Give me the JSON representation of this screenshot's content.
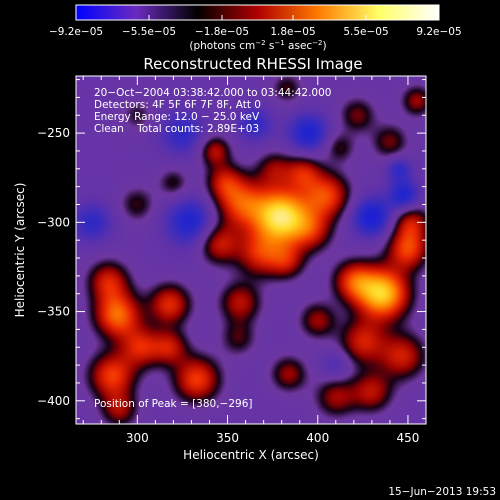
{
  "chart_data": {
    "type": "heatmap",
    "title": "Reconstructed RHESSI Image",
    "xlabel": "Heliocentric X (arcsec)",
    "ylabel": "Heliocentric Y (arcsec)",
    "xlim": [
      266,
      460
    ],
    "ylim": [
      -413,
      -218
    ],
    "x_ticks": [
      300,
      350,
      400,
      450
    ],
    "x_tick_labels": [
      "300",
      "350",
      "400",
      "450"
    ],
    "y_ticks": [
      -250,
      -300,
      -350,
      -400
    ],
    "y_tick_labels": [
      "−250",
      "−300",
      "−350",
      "−400"
    ],
    "colorbar": {
      "min": -9.2e-05,
      "max": 9.2e-05,
      "tick_values": [
        -9.2e-05,
        -5.5e-05,
        -1.8e-05,
        1.8e-05,
        5.5e-05,
        9.2e-05
      ],
      "tick_labels": [
        "−9.2e−05",
        "−5.5e−05",
        "−1.8e−05",
        "1.8e−05",
        "5.5e−05",
        "9.2e−05"
      ],
      "units_main": "(photons cm",
      "units_sup1": "−2",
      "units_mid": " s",
      "units_sup2": "−1",
      "units_end": " asec",
      "units_sup3": "−2",
      "units_close": ")",
      "colors": [
        "#0000ff",
        "#6a2bbf",
        "#000000",
        "#b00000",
        "#ff7a00",
        "#ffff66",
        "#ffffff"
      ]
    },
    "annotations": {
      "line1": "20−Oct−2004 03:38:42.000 to 03:44:42.000",
      "line2": "Detectors: 4F 5F 6F 7F 8F, Att 0",
      "line3": "Energy Range: 12.0 − 25.0 keV",
      "line4": "Clean    Total counts: 2.89E+03",
      "peak": "Position of Peak = [380,−296]"
    },
    "footer_date": "15−Jun−2013 19:53",
    "peak_position": [
      380,
      -296
    ],
    "sources": [
      {
        "x": 380,
        "y": -297,
        "amp": 1.0,
        "sigma": 11
      },
      {
        "x": 357,
        "y": -289,
        "amp": 0.55,
        "sigma": 10
      },
      {
        "x": 405,
        "y": -285,
        "amp": 0.55,
        "sigma": 9
      },
      {
        "x": 368,
        "y": -318,
        "amp": 0.45,
        "sigma": 9
      },
      {
        "x": 345,
        "y": -312,
        "amp": 0.45,
        "sigma": 8
      },
      {
        "x": 383,
        "y": -322,
        "amp": 0.35,
        "sigma": 7
      },
      {
        "x": 397,
        "y": -305,
        "amp": 0.35,
        "sigma": 8
      },
      {
        "x": 392,
        "y": -272,
        "amp": 0.4,
        "sigma": 7
      },
      {
        "x": 376,
        "y": -270,
        "amp": 0.3,
        "sigma": 7
      },
      {
        "x": 436,
        "y": -340,
        "amp": 0.9,
        "sigma": 10
      },
      {
        "x": 450,
        "y": -315,
        "amp": 0.55,
        "sigma": 8
      },
      {
        "x": 420,
        "y": -333,
        "amp": 0.5,
        "sigma": 8
      },
      {
        "x": 452,
        "y": -300,
        "amp": 0.4,
        "sigma": 7
      },
      {
        "x": 425,
        "y": -367,
        "amp": 0.45,
        "sigma": 9
      },
      {
        "x": 447,
        "y": -375,
        "amp": 0.45,
        "sigma": 9
      },
      {
        "x": 430,
        "y": -395,
        "amp": 0.4,
        "sigma": 8
      },
      {
        "x": 410,
        "y": -398,
        "amp": 0.35,
        "sigma": 8
      },
      {
        "x": 289,
        "y": -352,
        "amp": 0.65,
        "sigma": 9
      },
      {
        "x": 284,
        "y": -333,
        "amp": 0.45,
        "sigma": 8
      },
      {
        "x": 318,
        "y": -346,
        "amp": 0.5,
        "sigma": 8
      },
      {
        "x": 302,
        "y": -370,
        "amp": 0.45,
        "sigma": 8
      },
      {
        "x": 318,
        "y": -370,
        "amp": 0.4,
        "sigma": 7
      },
      {
        "x": 333,
        "y": -388,
        "amp": 0.55,
        "sigma": 9
      },
      {
        "x": 286,
        "y": -386,
        "amp": 0.55,
        "sigma": 9
      },
      {
        "x": 290,
        "y": -405,
        "amp": 0.35,
        "sigma": 7
      },
      {
        "x": 357,
        "y": -345,
        "amp": 0.4,
        "sigma": 8
      },
      {
        "x": 400,
        "y": -355,
        "amp": 0.35,
        "sigma": 7
      },
      {
        "x": 384,
        "y": -385,
        "amp": 0.35,
        "sigma": 7
      },
      {
        "x": 356,
        "y": -365,
        "amp": 0.25,
        "sigma": 7
      },
      {
        "x": 343,
        "y": -260,
        "amp": 0.4,
        "sigma": 6
      },
      {
        "x": 348,
        "y": -277,
        "amp": 0.35,
        "sigma": 7
      },
      {
        "x": 320,
        "y": -278,
        "amp": 0.25,
        "sigma": 6
      },
      {
        "x": 300,
        "y": -290,
        "amp": 0.25,
        "sigma": 7
      },
      {
        "x": 422,
        "y": -240,
        "amp": 0.3,
        "sigma": 7
      },
      {
        "x": 440,
        "y": -255,
        "amp": 0.3,
        "sigma": 7
      },
      {
        "x": 455,
        "y": -232,
        "amp": 0.35,
        "sigma": 6
      },
      {
        "x": 412,
        "y": -258,
        "amp": 0.25,
        "sigma": 6
      },
      {
        "x": 383,
        "y": -225,
        "amp": 0.25,
        "sigma": 6
      },
      {
        "x": 300,
        "y": -240,
        "amp": 0.2,
        "sigma": 6
      },
      {
        "x": 430,
        "y": -297,
        "amp": -0.45,
        "sigma": 8
      },
      {
        "x": 330,
        "y": -300,
        "amp": -0.4,
        "sigma": 10
      },
      {
        "x": 325,
        "y": -250,
        "amp": -0.3,
        "sigma": 9
      },
      {
        "x": 395,
        "y": -250,
        "amp": -0.4,
        "sigma": 8
      },
      {
        "x": 448,
        "y": -285,
        "amp": -0.4,
        "sigma": 6
      },
      {
        "x": 365,
        "y": -245,
        "amp": -0.3,
        "sigma": 7
      },
      {
        "x": 275,
        "y": -300,
        "amp": -0.3,
        "sigma": 8
      },
      {
        "x": 410,
        "y": -380,
        "amp": -0.2,
        "sigma": 6
      },
      {
        "x": 445,
        "y": -270,
        "amp": -0.3,
        "sigma": 5
      }
    ]
  }
}
